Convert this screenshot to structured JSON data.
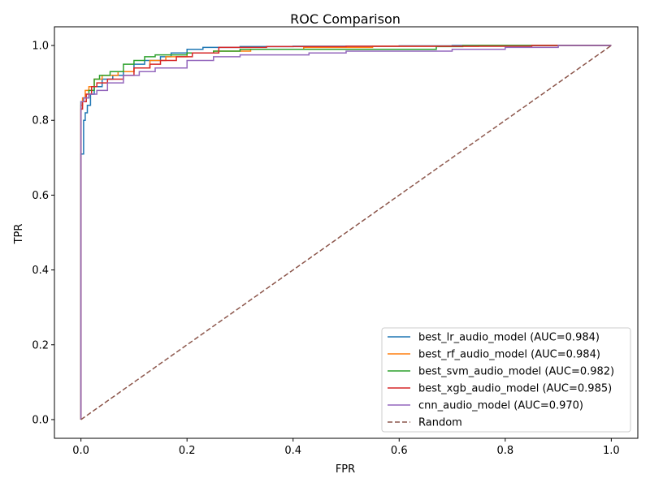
{
  "chart_data": {
    "type": "line",
    "title": "ROC Comparison",
    "xlabel": "FPR",
    "ylabel": "TPR",
    "xlim": [
      -0.05,
      1.05
    ],
    "ylim": [
      -0.05,
      1.05
    ],
    "x_ticks": [
      0.0,
      0.2,
      0.4,
      0.6,
      0.8,
      1.0
    ],
    "y_ticks": [
      0.0,
      0.2,
      0.4,
      0.6,
      0.8,
      1.0
    ],
    "x_tick_labels": [
      "0.0",
      "0.2",
      "0.4",
      "0.6",
      "0.8",
      "1.0"
    ],
    "y_tick_labels": [
      "0.0",
      "0.2",
      "0.4",
      "0.6",
      "0.8",
      "1.0"
    ],
    "grid": false,
    "legend_position": "lower-right",
    "series": [
      {
        "name": "best_lr_audio_model (AUC=0.984)",
        "color": "#1f77b4",
        "dash": "solid",
        "x": [
          0,
          0,
          0.005,
          0.005,
          0.008,
          0.008,
          0.012,
          0.012,
          0.018,
          0.018,
          0.025,
          0.025,
          0.04,
          0.04,
          0.06,
          0.06,
          0.08,
          0.08,
          0.1,
          0.1,
          0.12,
          0.12,
          0.15,
          0.15,
          0.17,
          0.17,
          0.2,
          0.2,
          0.23,
          0.23,
          0.3,
          0.3,
          0.4,
          0.4,
          0.6,
          0.6,
          0.7,
          0.7,
          1.0
        ],
        "y": [
          0,
          0.71,
          0.71,
          0.8,
          0.8,
          0.82,
          0.82,
          0.84,
          0.84,
          0.87,
          0.87,
          0.89,
          0.89,
          0.91,
          0.91,
          0.92,
          0.92,
          0.93,
          0.93,
          0.95,
          0.95,
          0.96,
          0.96,
          0.97,
          0.97,
          0.98,
          0.98,
          0.99,
          0.99,
          0.995,
          0.995,
          0.997,
          0.997,
          0.998,
          0.998,
          0.999,
          0.999,
          1.0,
          1.0
        ]
      },
      {
        "name": "best_rf_audio_model (AUC=0.984)",
        "color": "#ff7f0e",
        "dash": "solid",
        "x": [
          0,
          0,
          0.003,
          0.003,
          0.008,
          0.008,
          0.015,
          0.015,
          0.025,
          0.025,
          0.04,
          0.04,
          0.07,
          0.07,
          0.1,
          0.1,
          0.13,
          0.13,
          0.16,
          0.16,
          0.2,
          0.2,
          0.25,
          0.25,
          0.32,
          0.32,
          0.42,
          0.42,
          0.55,
          0.55,
          0.75,
          0.75,
          1.0
        ],
        "y": [
          0,
          0.84,
          0.84,
          0.86,
          0.86,
          0.88,
          0.88,
          0.89,
          0.89,
          0.91,
          0.91,
          0.92,
          0.92,
          0.93,
          0.93,
          0.94,
          0.94,
          0.96,
          0.96,
          0.97,
          0.97,
          0.98,
          0.98,
          0.985,
          0.985,
          0.99,
          0.99,
          0.995,
          0.995,
          0.998,
          0.998,
          1.0,
          1.0
        ]
      },
      {
        "name": "best_svm_audio_model (AUC=0.982)",
        "color": "#2ca02c",
        "dash": "solid",
        "x": [
          0,
          0,
          0.005,
          0.005,
          0.015,
          0.015,
          0.025,
          0.025,
          0.035,
          0.035,
          0.055,
          0.055,
          0.08,
          0.08,
          0.1,
          0.1,
          0.12,
          0.12,
          0.14,
          0.14,
          0.2,
          0.2,
          0.25,
          0.25,
          0.3,
          0.3,
          0.45,
          0.45,
          0.67,
          0.67,
          0.72,
          0.72,
          1.0
        ],
        "y": [
          0,
          0.85,
          0.85,
          0.86,
          0.86,
          0.88,
          0.88,
          0.91,
          0.91,
          0.92,
          0.92,
          0.93,
          0.93,
          0.95,
          0.95,
          0.96,
          0.96,
          0.97,
          0.97,
          0.975,
          0.975,
          0.98,
          0.98,
          0.985,
          0.985,
          0.99,
          0.99,
          0.99,
          0.99,
          0.997,
          0.997,
          1.0,
          1.0
        ]
      },
      {
        "name": "best_xgb_audio_model (AUC=0.985)",
        "color": "#d62728",
        "dash": "solid",
        "x": [
          0,
          0,
          0.003,
          0.003,
          0.01,
          0.01,
          0.02,
          0.02,
          0.03,
          0.03,
          0.05,
          0.05,
          0.08,
          0.08,
          0.1,
          0.1,
          0.13,
          0.13,
          0.15,
          0.15,
          0.18,
          0.18,
          0.21,
          0.21,
          0.26,
          0.26,
          0.35,
          0.35,
          0.5,
          0.5,
          0.85,
          0.85,
          1.0
        ],
        "y": [
          0,
          0.83,
          0.83,
          0.85,
          0.85,
          0.87,
          0.87,
          0.89,
          0.89,
          0.9,
          0.9,
          0.91,
          0.91,
          0.92,
          0.92,
          0.94,
          0.94,
          0.95,
          0.95,
          0.96,
          0.96,
          0.97,
          0.97,
          0.98,
          0.98,
          0.995,
          0.995,
          0.997,
          0.997,
          0.998,
          0.998,
          1.0,
          1.0
        ]
      },
      {
        "name": "cnn_audio_model (AUC=0.970)",
        "color": "#9467bd",
        "dash": "solid",
        "x": [
          0,
          0,
          0.005,
          0.005,
          0.015,
          0.015,
          0.03,
          0.03,
          0.05,
          0.05,
          0.08,
          0.08,
          0.11,
          0.11,
          0.14,
          0.14,
          0.2,
          0.2,
          0.25,
          0.25,
          0.3,
          0.3,
          0.43,
          0.43,
          0.5,
          0.5,
          0.7,
          0.7,
          0.8,
          0.8,
          0.9,
          0.9,
          1.0
        ],
        "y": [
          0,
          0.85,
          0.85,
          0.86,
          0.86,
          0.87,
          0.87,
          0.88,
          0.88,
          0.9,
          0.9,
          0.92,
          0.92,
          0.93,
          0.93,
          0.94,
          0.94,
          0.96,
          0.96,
          0.97,
          0.97,
          0.975,
          0.975,
          0.98,
          0.98,
          0.985,
          0.985,
          0.99,
          0.99,
          0.995,
          0.995,
          1.0,
          1.0
        ]
      },
      {
        "name": "Random",
        "color": "#8c564b",
        "dash": "dashed",
        "x": [
          0,
          1
        ],
        "y": [
          0,
          1
        ]
      }
    ]
  }
}
